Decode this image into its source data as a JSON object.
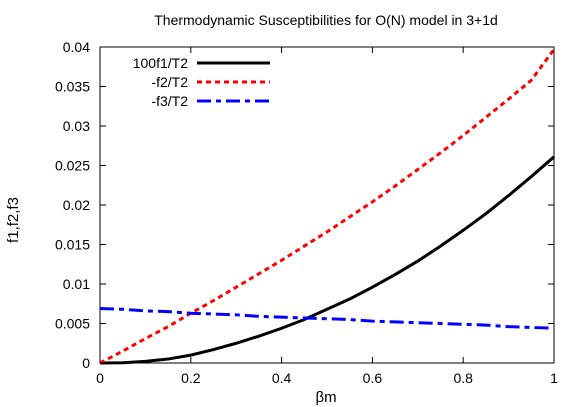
{
  "chart_data": {
    "type": "line",
    "title": "Thermodynamic Susceptibilities for O(N) model in 3+1d",
    "xlabel": "βm",
    "ylabel": "f1,f2,f3",
    "xlim": [
      0,
      1
    ],
    "ylim": [
      0,
      0.04
    ],
    "xticks": [
      "0",
      "0.2",
      "0.4",
      "0.6",
      "0.8",
      "1"
    ],
    "yticks": [
      "0",
      "0.005",
      "0.01",
      "0.015",
      "0.02",
      "0.025",
      "0.03",
      "0.035",
      "0.04"
    ],
    "grid": false,
    "legend_position": "top-left",
    "x": [
      0,
      0.05,
      0.1,
      0.15,
      0.2,
      0.25,
      0.3,
      0.35,
      0.4,
      0.45,
      0.5,
      0.55,
      0.6,
      0.65,
      0.7,
      0.75,
      0.8,
      0.85,
      0.9,
      0.95,
      1.0
    ],
    "series": [
      {
        "name": "100f1/T2",
        "color": "#000000",
        "style": "solid",
        "values": [
          0,
          3e-05,
          0.0002,
          0.0005,
          0.001,
          0.0017,
          0.0025,
          0.0034,
          0.0044,
          0.0055,
          0.0068,
          0.0081,
          0.0096,
          0.0112,
          0.0129,
          0.0148,
          0.0168,
          0.0189,
          0.0212,
          0.0236,
          0.0261
        ]
      },
      {
        "name": "-f2/T2",
        "color": "#ff0000",
        "style": "dotted",
        "values": [
          0,
          0.0015,
          0.0031,
          0.0046,
          0.0063,
          0.0079,
          0.0096,
          0.0113,
          0.013,
          0.0148,
          0.0166,
          0.0185,
          0.0204,
          0.0224,
          0.0245,
          0.0266,
          0.0288,
          0.0311,
          0.0334,
          0.0358,
          0.0397
        ]
      },
      {
        "name": "-f3/T2",
        "color": "#0000ff",
        "style": "dash-dot",
        "values": [
          0.0069,
          0.0068,
          0.0066,
          0.0065,
          0.0063,
          0.0062,
          0.0061,
          0.0059,
          0.0058,
          0.0057,
          0.0056,
          0.0055,
          0.0053,
          0.0052,
          0.0051,
          0.005,
          0.0049,
          0.0048,
          0.0046,
          0.0045,
          0.0044
        ]
      }
    ]
  }
}
